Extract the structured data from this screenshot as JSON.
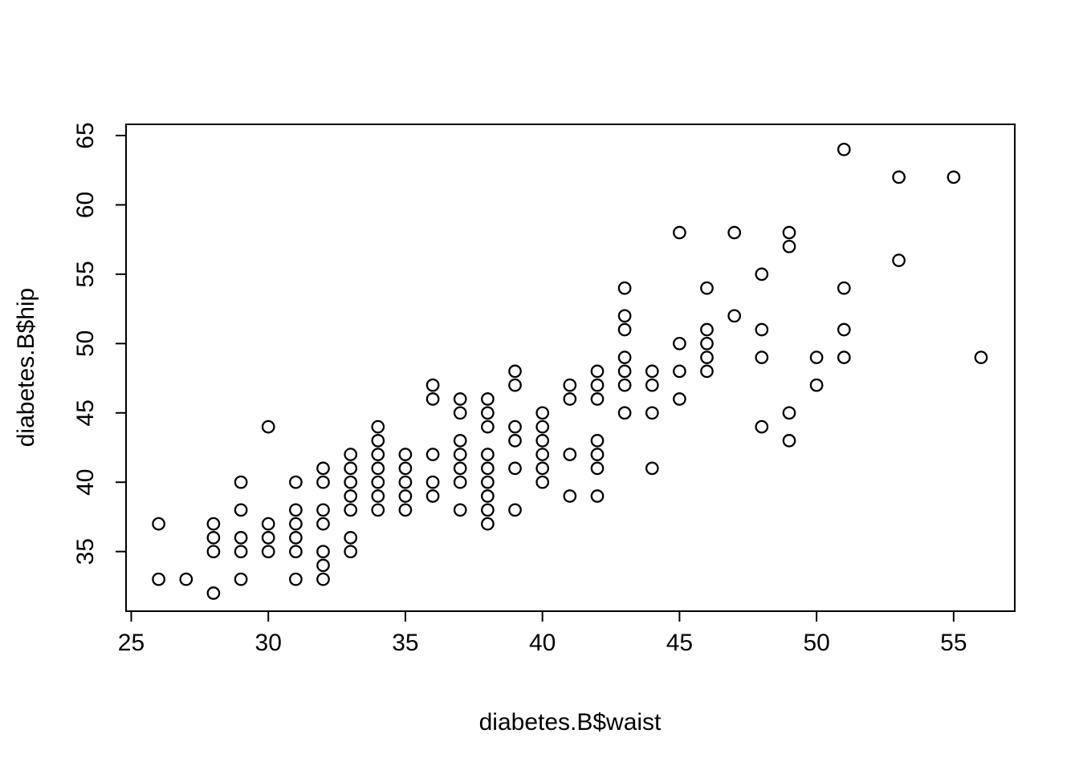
{
  "chart_data": {
    "type": "scatter",
    "title": "",
    "xlabel": "diabetes.B$waist",
    "ylabel": "diabetes.B$hip",
    "x_ticks": [
      25,
      30,
      35,
      40,
      45,
      50,
      55
    ],
    "y_ticks": [
      35,
      40,
      45,
      50,
      55,
      60,
      65
    ],
    "xlim": [
      24.81,
      57.23
    ],
    "ylim": [
      30.7,
      65.81
    ],
    "grid": false,
    "legend": null,
    "marker": "open-circle",
    "marker_color": "#000000",
    "background_color": "#ffffff",
    "points": [
      [
        26,
        37
      ],
      [
        26,
        33
      ],
      [
        27,
        33
      ],
      [
        28,
        37
      ],
      [
        28,
        36
      ],
      [
        28,
        35
      ],
      [
        28,
        32
      ],
      [
        29,
        40
      ],
      [
        29,
        38
      ],
      [
        29,
        36
      ],
      [
        29,
        35
      ],
      [
        29,
        33
      ],
      [
        30,
        44
      ],
      [
        30,
        37
      ],
      [
        30,
        36
      ],
      [
        30,
        35
      ],
      [
        31,
        40
      ],
      [
        31,
        38
      ],
      [
        31,
        37
      ],
      [
        31,
        36
      ],
      [
        31,
        35
      ],
      [
        31,
        33
      ],
      [
        32,
        41
      ],
      [
        32,
        40
      ],
      [
        32,
        38
      ],
      [
        32,
        37
      ],
      [
        32,
        35
      ],
      [
        32,
        34
      ],
      [
        32,
        33
      ],
      [
        33,
        42
      ],
      [
        33,
        41
      ],
      [
        33,
        40
      ],
      [
        33,
        39
      ],
      [
        33,
        38
      ],
      [
        33,
        36
      ],
      [
        33,
        35
      ],
      [
        34,
        44
      ],
      [
        34,
        43
      ],
      [
        34,
        42
      ],
      [
        34,
        41
      ],
      [
        34,
        40
      ],
      [
        34,
        39
      ],
      [
        34,
        38
      ],
      [
        35,
        42
      ],
      [
        35,
        41
      ],
      [
        35,
        40
      ],
      [
        35,
        39
      ],
      [
        35,
        38
      ],
      [
        36,
        47
      ],
      [
        36,
        46
      ],
      [
        36,
        42
      ],
      [
        36,
        40
      ],
      [
        36,
        39
      ],
      [
        37,
        46
      ],
      [
        37,
        45
      ],
      [
        37,
        43
      ],
      [
        37,
        42
      ],
      [
        37,
        41
      ],
      [
        37,
        40
      ],
      [
        37,
        38
      ],
      [
        38,
        46
      ],
      [
        38,
        45
      ],
      [
        38,
        44
      ],
      [
        38,
        42
      ],
      [
        38,
        41
      ],
      [
        38,
        40
      ],
      [
        38,
        39
      ],
      [
        38,
        38
      ],
      [
        38,
        37
      ],
      [
        39,
        48
      ],
      [
        39,
        47
      ],
      [
        39,
        44
      ],
      [
        39,
        43
      ],
      [
        39,
        41
      ],
      [
        39,
        38
      ],
      [
        40,
        45
      ],
      [
        40,
        44
      ],
      [
        40,
        43
      ],
      [
        40,
        42
      ],
      [
        40,
        41
      ],
      [
        40,
        40
      ],
      [
        41,
        47
      ],
      [
        41,
        46
      ],
      [
        41,
        42
      ],
      [
        41,
        39
      ],
      [
        42,
        48
      ],
      [
        42,
        47
      ],
      [
        42,
        46
      ],
      [
        42,
        43
      ],
      [
        42,
        42
      ],
      [
        42,
        41
      ],
      [
        42,
        39
      ],
      [
        43,
        54
      ],
      [
        43,
        52
      ],
      [
        43,
        51
      ],
      [
        43,
        49
      ],
      [
        43,
        48
      ],
      [
        43,
        47
      ],
      [
        43,
        45
      ],
      [
        44,
        48
      ],
      [
        44,
        47
      ],
      [
        44,
        45
      ],
      [
        44,
        41
      ],
      [
        45,
        58
      ],
      [
        45,
        50
      ],
      [
        45,
        48
      ],
      [
        45,
        46
      ],
      [
        46,
        54
      ],
      [
        46,
        51
      ],
      [
        46,
        50
      ],
      [
        46,
        49
      ],
      [
        46,
        48
      ],
      [
        47,
        58
      ],
      [
        47,
        52
      ],
      [
        48,
        55
      ],
      [
        48,
        51
      ],
      [
        48,
        49
      ],
      [
        48,
        44
      ],
      [
        49,
        58
      ],
      [
        49,
        57
      ],
      [
        49,
        45
      ],
      [
        49,
        43
      ],
      [
        50,
        49
      ],
      [
        50,
        47
      ],
      [
        51,
        64
      ],
      [
        51,
        54
      ],
      [
        51,
        51
      ],
      [
        51,
        49
      ],
      [
        53,
        62
      ],
      [
        53,
        56
      ],
      [
        55,
        62
      ],
      [
        56,
        49
      ]
    ]
  }
}
